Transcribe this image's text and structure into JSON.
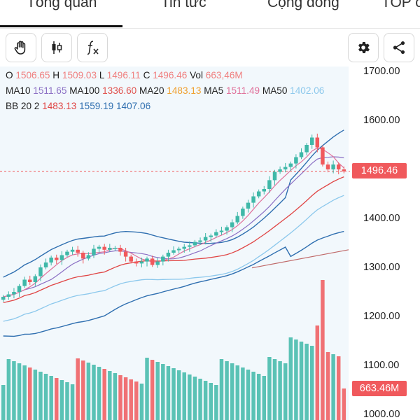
{
  "tabs": [
    {
      "label": "Tổng quan",
      "active": true
    },
    {
      "label": "Tin tức",
      "active": false
    },
    {
      "label": "Cộng đồng",
      "active": false
    },
    {
      "label": "TOP cổ",
      "active": false
    }
  ],
  "toolbar": {
    "left_tools": [
      "hand-icon",
      "candlestick-icon",
      "function-icon"
    ],
    "right_tools": [
      "gear-icon",
      "share-icon"
    ]
  },
  "legend": {
    "ohlc": [
      {
        "key": "O",
        "value": "1506.65",
        "color": "#f08080"
      },
      {
        "key": "H",
        "value": "1509.03",
        "color": "#f08080"
      },
      {
        "key": "L",
        "value": "1496.11",
        "color": "#f08080"
      },
      {
        "key": "C",
        "value": "1496.46",
        "color": "#f08080"
      },
      {
        "key": "Vol",
        "value": "663,46M",
        "color": "#f08080"
      }
    ],
    "ma": [
      {
        "key": "MA10",
        "value": "1511.65",
        "color": "#8b6fc4"
      },
      {
        "key": "MA100",
        "value": "1336.60",
        "color": "#e0524e"
      },
      {
        "key": "MA20",
        "value": "1483.13",
        "color": "#f0a030"
      },
      {
        "key": "MA5",
        "value": "1511.49",
        "color": "#e0709a"
      },
      {
        "key": "MA50",
        "value": "1402.06",
        "color": "#8cc8ec"
      }
    ],
    "bb": {
      "key": "BB 20 2",
      "values": [
        {
          "value": "1483.13",
          "color": "#e04545"
        },
        {
          "value": "1559.19",
          "color": "#2f6fb0"
        },
        {
          "value": "1407.06",
          "color": "#2f6fb0"
        }
      ]
    }
  },
  "price_axis": [
    "1700.00",
    "1600.00",
    "1500.00",
    "1400.00",
    "1300.00",
    "1200.00",
    "1100.00",
    "1000.00"
  ],
  "current_price_label": "1496.46",
  "current_volume_label": "663.46M",
  "colors": {
    "up": "#3fb8a8",
    "down": "#f0595c",
    "bb": "#2f6fb0"
  },
  "chart_data": {
    "type": "candlestick",
    "y_range": [
      1000,
      1700
    ],
    "current_price": 1496.46,
    "candles_approx_close": [
      1240,
      1245,
      1250,
      1262,
      1275,
      1270,
      1282,
      1300,
      1310,
      1320,
      1315,
      1325,
      1332,
      1336,
      1330,
      1318,
      1325,
      1338,
      1342,
      1336,
      1340,
      1340,
      1332,
      1322,
      1312,
      1308,
      1312,
      1318,
      1305,
      1312,
      1322,
      1330,
      1335,
      1338,
      1342,
      1345,
      1352,
      1355,
      1362,
      1365,
      1372,
      1375,
      1382,
      1392,
      1405,
      1420,
      1432,
      1445,
      1455,
      1460,
      1478,
      1495,
      1500,
      1505,
      1512,
      1525,
      1535,
      1550,
      1565,
      1545,
      1510,
      1500,
      1510,
      1500,
      1496
    ]
  }
}
